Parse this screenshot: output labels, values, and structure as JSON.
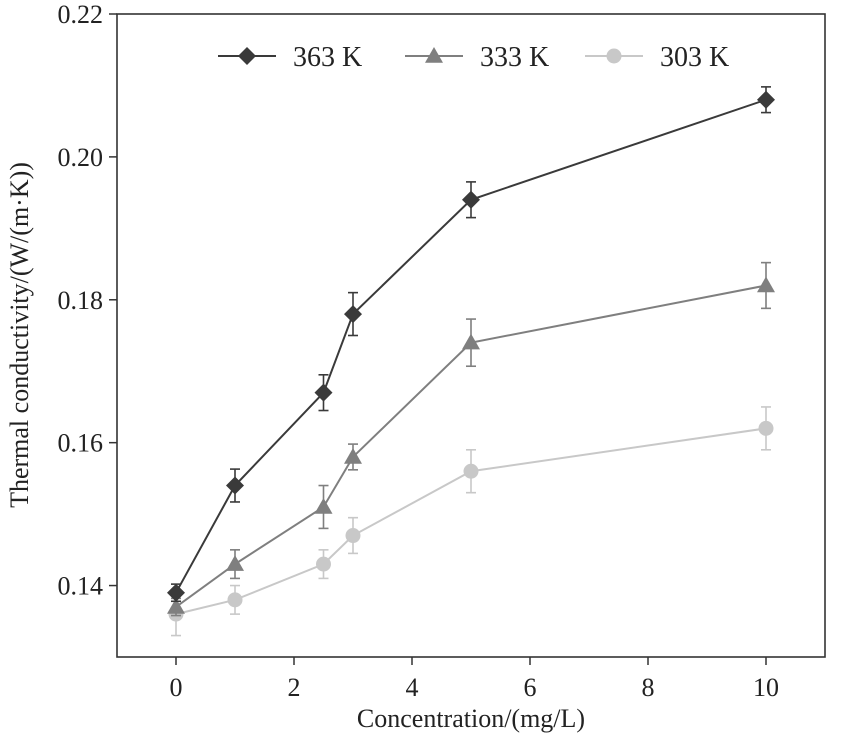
{
  "chart_data": {
    "type": "line",
    "title": "",
    "xlabel": "Concentration/(mg/L)",
    "ylabel": "Thermal conductivity/(W/(m·K))",
    "xlim": [
      -1,
      11
    ],
    "ylim": [
      0.13,
      0.22
    ],
    "xticks": [
      0,
      2,
      4,
      6,
      8,
      10
    ],
    "yticks": [
      0.14,
      0.16,
      0.18,
      0.2,
      0.22
    ],
    "xtick_labels": [
      "0",
      "2",
      "4",
      "6",
      "8",
      "10"
    ],
    "ytick_labels": [
      "0.14",
      "0.16",
      "0.18",
      "0.20",
      "0.22"
    ],
    "x": [
      0,
      1,
      2.5,
      3,
      5,
      10
    ],
    "legend_position": "top",
    "grid": false,
    "series": [
      {
        "name": "363 K",
        "color": "#3a3a3a",
        "marker": "diamond",
        "values": [
          0.139,
          0.154,
          0.167,
          0.178,
          0.194,
          0.208
        ],
        "errors": [
          0.0012,
          0.0023,
          0.0025,
          0.003,
          0.0025,
          0.0018
        ]
      },
      {
        "name": "333 K",
        "color": "#7f7f7f",
        "marker": "triangle",
        "values": [
          0.137,
          0.143,
          0.151,
          0.158,
          0.174,
          0.182
        ],
        "errors": [
          0.0012,
          0.002,
          0.003,
          0.0018,
          0.0033,
          0.0032
        ]
      },
      {
        "name": "303 K",
        "color": "#c8c8c8",
        "marker": "circle",
        "values": [
          0.136,
          0.138,
          0.143,
          0.147,
          0.156,
          0.162
        ],
        "errors": [
          0.003,
          0.002,
          0.002,
          0.0025,
          0.003,
          0.003
        ]
      }
    ]
  }
}
